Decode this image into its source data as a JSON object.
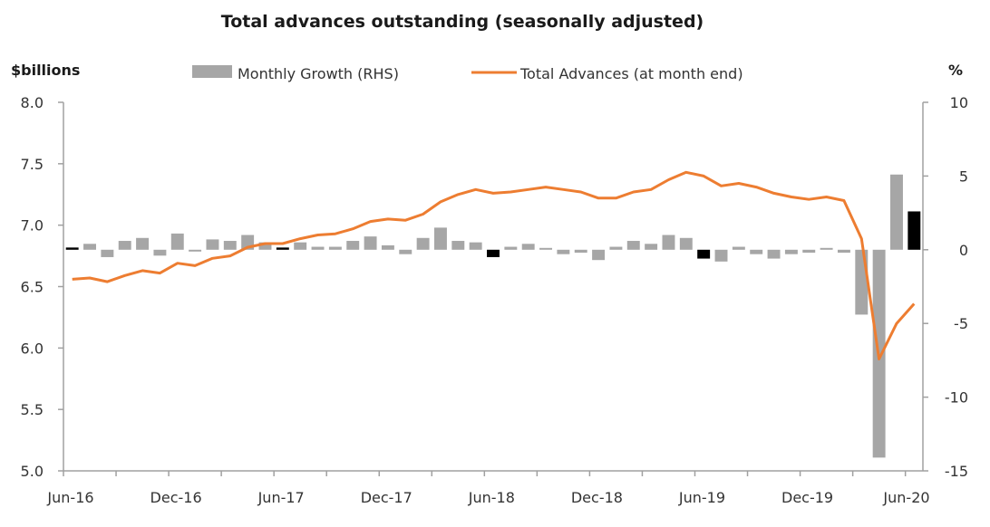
{
  "chart_data": {
    "type": "bar+line",
    "title": "Total advances outstanding (seasonally adjusted)",
    "ylabel_left": "$billions",
    "ylabel_right": "%",
    "ylim_left": [
      5.0,
      8.0
    ],
    "ylim_right": [
      -15,
      10
    ],
    "yticks_left": [
      "8.0",
      "7.5",
      "7.0",
      "6.5",
      "6.0",
      "5.5",
      "5.0"
    ],
    "yticks_left_values": [
      8.0,
      7.5,
      7.0,
      6.5,
      6.0,
      5.5,
      5.0
    ],
    "yticks_right": [
      "10",
      "5",
      "0",
      "-5",
      "-10",
      "-15"
    ],
    "yticks_right_values": [
      10,
      5,
      0,
      -5,
      -10,
      -15
    ],
    "xtick_labels": [
      "Jun-16",
      "Dec-16",
      "Jun-17",
      "Dec-17",
      "Jun-18",
      "Dec-18",
      "Jun-19",
      "Dec-19",
      "Jun-20"
    ],
    "legend": [
      {
        "name": "Monthly Growth (RHS)",
        "type": "bar",
        "color": "#a6a6a6"
      },
      {
        "name": "Total Advances (at month end)",
        "type": "line",
        "color": "#ed7d31"
      }
    ],
    "legend_position": "top",
    "grid": false,
    "months": [
      "Jun-16",
      "Jul-16",
      "Aug-16",
      "Sep-16",
      "Oct-16",
      "Nov-16",
      "Dec-16",
      "Jan-17",
      "Feb-17",
      "Mar-17",
      "Apr-17",
      "May-17",
      "Jun-17",
      "Jul-17",
      "Aug-17",
      "Sep-17",
      "Oct-17",
      "Nov-17",
      "Dec-17",
      "Jan-18",
      "Feb-18",
      "Mar-18",
      "Apr-18",
      "May-18",
      "Jun-18",
      "Jul-18",
      "Aug-18",
      "Sep-18",
      "Oct-18",
      "Nov-18",
      "Dec-18",
      "Jan-19",
      "Feb-19",
      "Mar-19",
      "Apr-19",
      "May-19",
      "Jun-19",
      "Jul-19",
      "Aug-19",
      "Sep-19",
      "Oct-19",
      "Nov-19",
      "Dec-19",
      "Jan-20",
      "Feb-20",
      "Mar-20",
      "Apr-20",
      "May-20",
      "Jun-20"
    ],
    "series": [
      {
        "name": "Monthly Growth (RHS)",
        "axis": "right",
        "type": "bar",
        "values": [
          0.15,
          0.4,
          -0.5,
          0.6,
          0.8,
          -0.4,
          1.1,
          -0.1,
          0.7,
          0.6,
          1.0,
          0.5,
          0.15,
          0.5,
          0.2,
          0.2,
          0.6,
          0.9,
          0.3,
          -0.3,
          0.8,
          1.5,
          0.6,
          0.5,
          -0.5,
          0.2,
          0.4,
          0.1,
          -0.3,
          -0.2,
          -0.7,
          0.2,
          0.6,
          0.4,
          1.0,
          0.8,
          -0.6,
          -0.8,
          0.2,
          -0.3,
          -0.6,
          -0.3,
          -0.2,
          0.1,
          -0.2,
          -4.4,
          -14.1,
          5.1,
          2.6
        ],
        "highlight_months": [
          "Jun-16",
          "Jun-17",
          "Jun-18",
          "Jun-19",
          "Jun-20"
        ],
        "color": "#a6a6a6",
        "highlight_color": "#000000"
      },
      {
        "name": "Total Advances (at month end)",
        "axis": "left",
        "type": "line",
        "values": [
          6.56,
          6.57,
          6.54,
          6.59,
          6.63,
          6.61,
          6.69,
          6.67,
          6.73,
          6.75,
          6.82,
          6.85,
          6.85,
          6.89,
          6.92,
          6.93,
          6.97,
          7.03,
          7.05,
          7.04,
          7.09,
          7.19,
          7.25,
          7.29,
          7.26,
          7.27,
          7.29,
          7.31,
          7.29,
          7.27,
          7.22,
          7.22,
          7.27,
          7.29,
          7.37,
          7.43,
          7.4,
          7.32,
          7.34,
          7.31,
          7.26,
          7.23,
          7.21,
          7.23,
          7.2,
          6.89,
          5.91,
          6.2,
          6.36
        ],
        "color": "#ed7d31"
      }
    ]
  }
}
